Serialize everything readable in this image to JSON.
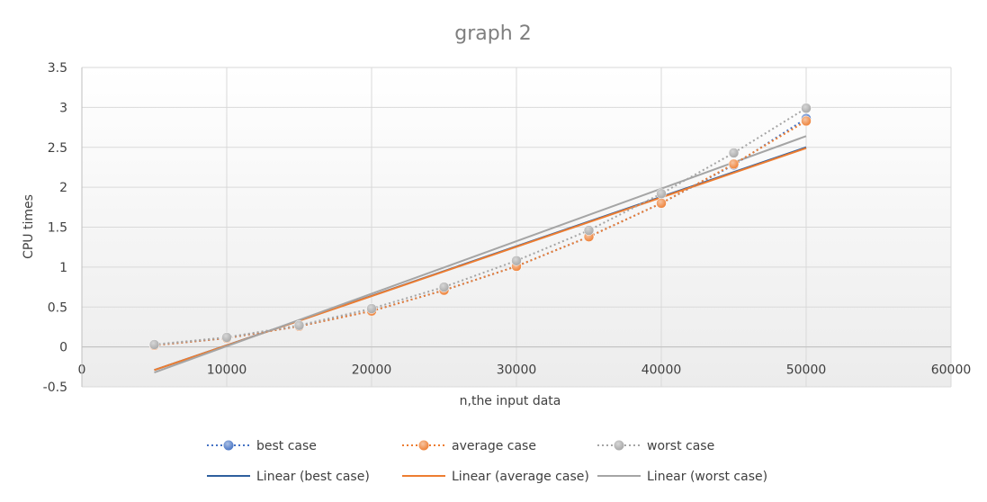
{
  "chart_data": {
    "type": "scatter",
    "title": "graph 2",
    "xlabel": "n,the input data",
    "ylabel": "CPU times",
    "xlim": [
      0,
      60000
    ],
    "ylim": [
      -0.5,
      3.5
    ],
    "x_ticks": [
      0,
      10000,
      20000,
      30000,
      40000,
      50000,
      60000
    ],
    "y_ticks": [
      -0.5,
      0,
      0.5,
      1,
      1.5,
      2,
      2.5,
      3,
      3.5
    ],
    "grid": true,
    "legend_position": "bottom",
    "x": [
      5000,
      10000,
      15000,
      20000,
      25000,
      30000,
      35000,
      40000,
      45000,
      50000
    ],
    "series": [
      {
        "name": "best case",
        "values": [
          0.02,
          0.11,
          0.26,
          0.45,
          0.71,
          1.01,
          1.38,
          1.8,
          2.28,
          2.86
        ],
        "color": "#4472c4",
        "style": "dotted-markers"
      },
      {
        "name": "average case",
        "values": [
          0.02,
          0.11,
          0.26,
          0.45,
          0.71,
          1.01,
          1.38,
          1.8,
          2.29,
          2.83
        ],
        "color": "#ed7d31",
        "style": "dotted-markers"
      },
      {
        "name": "worst case",
        "values": [
          0.03,
          0.12,
          0.27,
          0.48,
          0.75,
          1.08,
          1.46,
          1.92,
          2.43,
          2.99
        ],
        "color": "#a5a5a5",
        "style": "dotted-markers"
      }
    ],
    "trendlines": [
      {
        "name": "Linear (best case)",
        "x": [
          5000,
          50000
        ],
        "y": [
          -0.29,
          2.5
        ],
        "color": "#2e5f9e"
      },
      {
        "name": "Linear (average case)",
        "x": [
          5000,
          50000
        ],
        "y": [
          -0.29,
          2.49
        ],
        "color": "#ed7d31"
      },
      {
        "name": "Linear (worst case)",
        "x": [
          5000,
          50000
        ],
        "y": [
          -0.32,
          2.64
        ],
        "color": "#a5a5a5"
      }
    ],
    "legend": [
      {
        "label": "best case",
        "kind": "marker",
        "color": "#4472c4"
      },
      {
        "label": "average case",
        "kind": "marker",
        "color": "#ed7d31"
      },
      {
        "label": "worst case",
        "kind": "marker",
        "color": "#a5a5a5"
      },
      {
        "label": "Linear (best case)",
        "kind": "line",
        "color": "#2e5f9e"
      },
      {
        "label": "Linear (average case)",
        "kind": "line",
        "color": "#ed7d31"
      },
      {
        "label": "Linear (worst case)",
        "kind": "line",
        "color": "#a5a5a5"
      }
    ]
  }
}
